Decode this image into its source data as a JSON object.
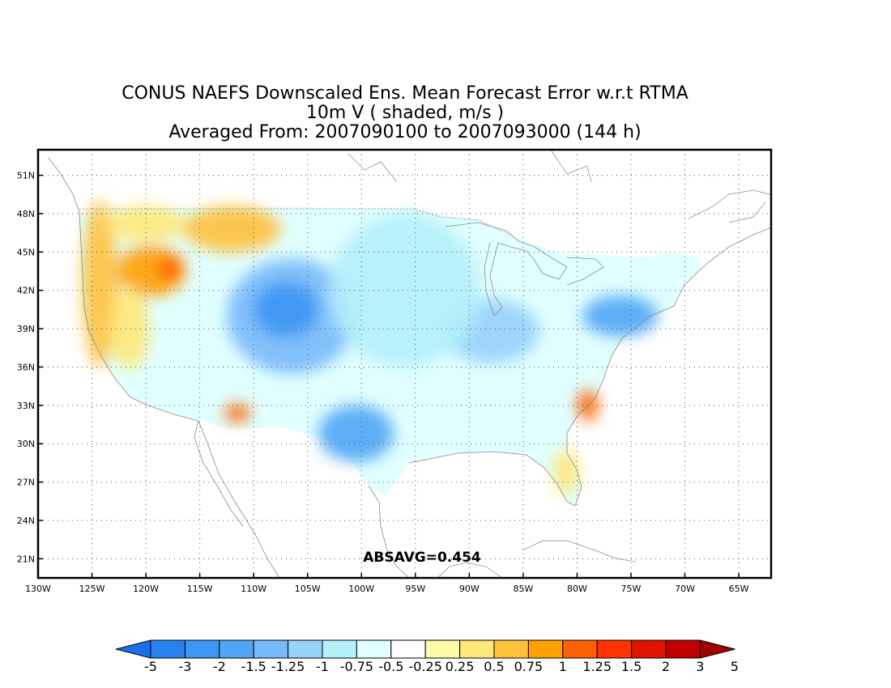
{
  "title": {
    "line1": "CONUS NAEFS Downscaled Ens. Mean Forecast Error w.r.t RTMA",
    "line2": "10m V ( shaded, m/s )",
    "line3": "Averaged From: 2007090100 to 2007093000 (144 h)"
  },
  "annotation": "ABSAVG=0.454",
  "map": {
    "lon_range": [
      -130,
      -62
    ],
    "lat_range": [
      19.5,
      53
    ],
    "lon_ticks": [
      -130,
      -125,
      -120,
      -115,
      -110,
      -105,
      -100,
      -95,
      -90,
      -85,
      -80,
      -75,
      -70,
      -65
    ],
    "lon_tick_labels": [
      "130W",
      "125W",
      "120W",
      "115W",
      "110W",
      "105W",
      "100W",
      "95W",
      "90W",
      "85W",
      "80W",
      "75W",
      "70W",
      "65W"
    ],
    "lat_ticks": [
      21,
      24,
      27,
      30,
      33,
      36,
      39,
      42,
      45,
      48,
      51
    ],
    "lat_tick_labels": [
      "21N",
      "24N",
      "27N",
      "30N",
      "33N",
      "36N",
      "39N",
      "42N",
      "45N",
      "48N",
      "51N"
    ],
    "grid": "dotted"
  },
  "colorbar": {
    "labels": [
      "-5",
      "-3",
      "-2",
      "-1.5",
      "-1.25",
      "-1",
      "-0.75",
      "-0.5",
      "-0.25",
      "0.25",
      "0.5",
      "0.75",
      "1",
      "1.25",
      "1.5",
      "2",
      "3",
      "5"
    ],
    "colors": [
      "#1e6eeb",
      "#2882f0",
      "#3c96f5",
      "#50a5f5",
      "#78b9fa",
      "#96d2fa",
      "#b4f0fa",
      "#e1ffff",
      "#ffffff",
      "#fffaaa",
      "#ffe878",
      "#ffc03c",
      "#ffa000",
      "#ff6000",
      "#ff3200",
      "#e11400",
      "#c00000",
      "#a50000"
    ]
  },
  "regions": [
    {
      "name": "west-coast-band",
      "lon": -124.3,
      "lat": 42.5,
      "rx": 1.6,
      "ry": 6.5,
      "color": "#ffc03c"
    },
    {
      "name": "oregon-warm",
      "lon": -119.5,
      "lat": 43.5,
      "rx": 3.2,
      "ry": 2.0,
      "color": "#ffa000"
    },
    {
      "name": "oregon-hot",
      "lon": -117.8,
      "lat": 43.7,
      "rx": 1.2,
      "ry": 0.9,
      "color": "#ff6000"
    },
    {
      "name": "montana-warm",
      "lon": -112.0,
      "lat": 46.8,
      "rx": 4.5,
      "ry": 1.8,
      "color": "#ffc03c"
    },
    {
      "name": "washington-warm",
      "lon": -120.0,
      "lat": 47.2,
      "rx": 3.8,
      "ry": 1.4,
      "color": "#ffe878"
    },
    {
      "name": "california-warm",
      "lon": -121.5,
      "lat": 39.0,
      "rx": 1.8,
      "ry": 3.2,
      "color": "#ffe878"
    },
    {
      "name": "arizona-hot",
      "lon": -111.5,
      "lat": 32.4,
      "rx": 1.2,
      "ry": 0.7,
      "color": "#ff6000"
    },
    {
      "name": "rockies-cool",
      "lon": -106.5,
      "lat": 40.0,
      "rx": 6.0,
      "ry": 4.5,
      "color": "#78b9fa"
    },
    {
      "name": "rockies-cooler",
      "lon": -107.0,
      "lat": 40.5,
      "rx": 3.0,
      "ry": 2.2,
      "color": "#3c96f5"
    },
    {
      "name": "texas-cool",
      "lon": -100.5,
      "lat": 30.8,
      "rx": 3.5,
      "ry": 2.2,
      "color": "#50a5f5"
    },
    {
      "name": "midwest-cool",
      "lon": -88.0,
      "lat": 38.8,
      "rx": 4.5,
      "ry": 2.5,
      "color": "#96d2fa"
    },
    {
      "name": "northeast-cool",
      "lon": -76.0,
      "lat": 40.0,
      "rx": 3.5,
      "ry": 1.6,
      "color": "#50a5f5"
    },
    {
      "name": "plains-light",
      "lon": -96.0,
      "lat": 42.0,
      "rx": 7.0,
      "ry": 6.0,
      "color": "#b4f0fa"
    },
    {
      "name": "carolina-warm",
      "lon": -79.0,
      "lat": 33.0,
      "rx": 1.0,
      "ry": 1.2,
      "color": "#ff6000"
    },
    {
      "name": "florida-warm",
      "lon": -81.0,
      "lat": 27.8,
      "rx": 1.2,
      "ry": 1.8,
      "color": "#ffe878"
    }
  ]
}
